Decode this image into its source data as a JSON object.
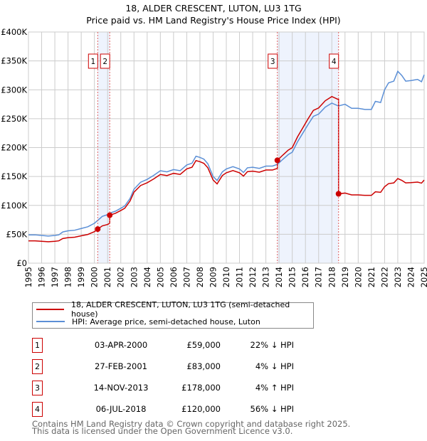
{
  "chart_data": {
    "type": "line",
    "title": "18, ALDER CRESCENT, LUTON, LU3 1TG",
    "subtitle": "Price paid vs. HM Land Registry's House Price Index (HPI)",
    "xlim": [
      1995,
      2025
    ],
    "ylim": [
      0,
      400000
    ],
    "x_ticks": [
      "1995",
      "1996",
      "1997",
      "1998",
      "1999",
      "2000",
      "2001",
      "2002",
      "2003",
      "2004",
      "2005",
      "2006",
      "2007",
      "2008",
      "2009",
      "2010",
      "2011",
      "2012",
      "2013",
      "2014",
      "2015",
      "2016",
      "2017",
      "2018",
      "2019",
      "2020",
      "2021",
      "2022",
      "2023",
      "2024",
      "2025"
    ],
    "y_ticks": [
      {
        "v": 0,
        "label": "£0"
      },
      {
        "v": 50000,
        "label": "£50K"
      },
      {
        "v": 100000,
        "label": "£100K"
      },
      {
        "v": 150000,
        "label": "£150K"
      },
      {
        "v": 200000,
        "label": "£200K"
      },
      {
        "v": 250000,
        "label": "£250K"
      },
      {
        "v": 300000,
        "label": "£300K"
      },
      {
        "v": 350000,
        "label": "£350K"
      },
      {
        "v": 400000,
        "label": "£400K"
      }
    ],
    "grid": true,
    "colors": {
      "price": "#cc0000",
      "hpi": "#5b8fd6",
      "shade": "#eef3fd"
    },
    "hpi_series": {
      "name": "HPI: Average price, semi-detached house, Luton",
      "x": [
        1995,
        1995.5,
        1996,
        1996.5,
        1997,
        1997.3,
        1997.6,
        1998,
        1998.5,
        1999,
        1999.5,
        2000,
        2000.25,
        2000.6,
        2001,
        2001.16,
        2001.6,
        2002,
        2002.3,
        2002.7,
        2003,
        2003.5,
        2004,
        2004.5,
        2005,
        2005.5,
        2006,
        2006.5,
        2007,
        2007.4,
        2007.7,
        2008,
        2008.3,
        2008.6,
        2009,
        2009.3,
        2009.7,
        2010,
        2010.5,
        2011,
        2011.3,
        2011.6,
        2012,
        2012.5,
        2013,
        2013.5,
        2013.87,
        2014.3,
        2014.7,
        2015,
        2015.4,
        2015.8,
        2016.2,
        2016.6,
        2017,
        2017.5,
        2018,
        2018.5,
        2019,
        2019.5,
        2020,
        2020.5,
        2021,
        2021.3,
        2021.7,
        2022,
        2022.3,
        2022.7,
        2023,
        2023.3,
        2023.6,
        2024,
        2024.5,
        2024.8,
        2025
      ],
      "y": [
        49000,
        49000,
        48000,
        47000,
        48000,
        49000,
        54000,
        56000,
        57000,
        60000,
        63000,
        69000,
        74000,
        81000,
        84000,
        86500,
        90000,
        95000,
        99000,
        112000,
        128000,
        140000,
        145000,
        152000,
        160000,
        158000,
        162000,
        160000,
        170000,
        173000,
        185000,
        183000,
        180000,
        172000,
        150000,
        143000,
        158000,
        163000,
        167000,
        163000,
        157000,
        165000,
        166000,
        164000,
        168000,
        168000,
        171000,
        180000,
        188000,
        192000,
        210000,
        225000,
        240000,
        254000,
        258000,
        270000,
        277000,
        272000,
        275000,
        268000,
        268000,
        266000,
        266000,
        280000,
        278000,
        300000,
        312000,
        315000,
        332000,
        325000,
        315000,
        316000,
        318000,
        314000,
        326000
      ]
    },
    "price_series_name": "18, ALDER CRESCENT, LUTON, LU3 1TG (semi-detached house)",
    "shaded_periods": [
      [
        2000.25,
        2001.16
      ],
      [
        2013.87,
        2018.51
      ]
    ]
  },
  "sales": [
    {
      "n": "1",
      "t": 2000.25,
      "date": "03-APR-2000",
      "price": 59000,
      "price_label": "£59,000",
      "hpi": "22% ↓ HPI"
    },
    {
      "n": "2",
      "t": 2001.16,
      "date": "27-FEB-2001",
      "price": 83000,
      "price_label": "£83,000",
      "hpi": "4% ↓ HPI"
    },
    {
      "n": "3",
      "t": 2013.87,
      "date": "14-NOV-2013",
      "price": 178000,
      "price_label": "£178,000",
      "hpi": "4% ↑ HPI"
    },
    {
      "n": "4",
      "t": 2018.51,
      "date": "06-JUL-2018",
      "price": 120000,
      "price_label": "£120,000",
      "hpi": "56% ↓ HPI"
    }
  ],
  "footer": {
    "line1": "Contains HM Land Registry data © Crown copyright and database right 2025.",
    "line2": "This data is licensed under the Open Government Licence v3.0."
  }
}
